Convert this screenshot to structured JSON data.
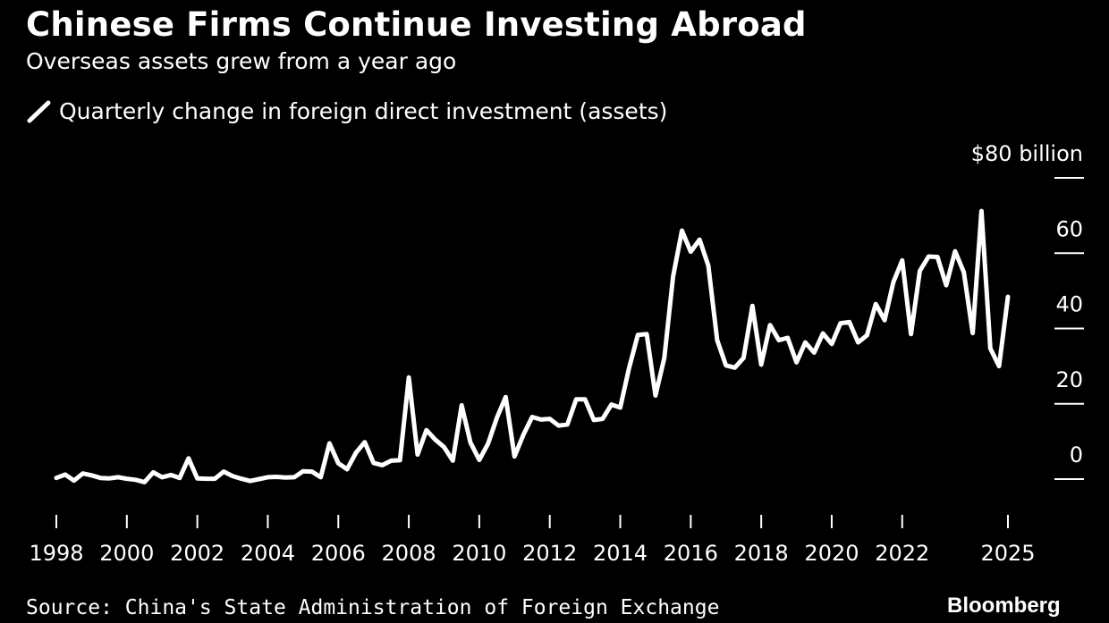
{
  "header": {
    "title": "Chinese Firms Continue Investing Abroad",
    "subtitle": "Overseas assets grew from a year ago"
  },
  "legend": {
    "label": "Quarterly change in foreign direct investment (assets)",
    "swatch_icon": "line-swatch-icon"
  },
  "footer": {
    "source": "Source: China's State Administration of Foreign Exchange",
    "brand": "Bloomberg"
  },
  "colors": {
    "background": "#000000",
    "line": "#ffffff",
    "text": "#ffffff"
  },
  "chart_data": {
    "type": "line",
    "title": "Chinese Firms Continue Investing Abroad",
    "subtitle": "Overseas assets grew from a year ago",
    "ylabel": "",
    "xlabel": "",
    "yunit_label": "$80 billion",
    "ylim": [
      -10,
      80
    ],
    "xlim": [
      1997.5,
      2025.75
    ],
    "grid": false,
    "legend_position": "top-left",
    "y_axis_side": "right",
    "yticks": [
      0,
      20,
      40,
      60,
      80
    ],
    "ytick_labels": [
      "0",
      "20",
      "40",
      "60",
      "$80 billion"
    ],
    "xticks": [
      1998,
      2000,
      2002,
      2004,
      2006,
      2008,
      2010,
      2012,
      2014,
      2016,
      2018,
      2020,
      2022,
      2025
    ],
    "xtick_labels": [
      "1998",
      "2000",
      "2002",
      "2004",
      "2006",
      "2008",
      "2010",
      "2012",
      "2014",
      "2016",
      "2018",
      "2020",
      "2022",
      "2025"
    ],
    "series": [
      {
        "name": "Quarterly change in foreign direct investment (assets)",
        "x": [
          1998.0,
          1998.25,
          1998.5,
          1998.75,
          1999.0,
          1999.25,
          1999.5,
          1999.75,
          2000.0,
          2000.25,
          2000.5,
          2000.75,
          2001.0,
          2001.25,
          2001.5,
          2001.75,
          2002.0,
          2002.25,
          2002.5,
          2002.75,
          2003.0,
          2003.25,
          2003.5,
          2003.75,
          2004.0,
          2004.25,
          2004.5,
          2004.75,
          2005.0,
          2005.25,
          2005.5,
          2005.75,
          2006.0,
          2006.25,
          2006.5,
          2006.75,
          2007.0,
          2007.25,
          2007.5,
          2007.75,
          2008.0,
          2008.25,
          2008.5,
          2008.75,
          2009.0,
          2009.25,
          2009.5,
          2009.75,
          2010.0,
          2010.25,
          2010.5,
          2010.75,
          2011.0,
          2011.25,
          2011.5,
          2011.75,
          2012.0,
          2012.25,
          2012.5,
          2012.75,
          2013.0,
          2013.25,
          2013.5,
          2013.75,
          2014.0,
          2014.25,
          2014.5,
          2014.75,
          2015.0,
          2015.25,
          2015.5,
          2015.75,
          2016.0,
          2016.25,
          2016.5,
          2016.75,
          2017.0,
          2017.25,
          2017.5,
          2017.75,
          2018.0,
          2018.25,
          2018.5,
          2018.75,
          2019.0,
          2019.25,
          2019.5,
          2019.75,
          2020.0,
          2020.25,
          2020.5,
          2020.75,
          2021.0,
          2021.25,
          2021.5,
          2021.75,
          2022.0,
          2022.25,
          2022.5,
          2022.75,
          2023.0,
          2023.25,
          2023.5,
          2023.75,
          2024.0,
          2024.25,
          2024.5,
          2024.75,
          2025.0
        ],
        "values": [
          0.3,
          1.2,
          -0.4,
          1.5,
          1.0,
          0.3,
          0.2,
          0.5,
          0.1,
          -0.2,
          -0.8,
          1.8,
          0.5,
          1.1,
          0.3,
          5.5,
          0.2,
          0.1,
          0.1,
          2.0,
          0.8,
          0.1,
          -0.5,
          0.0,
          0.5,
          0.6,
          0.4,
          0.5,
          2.1,
          2.0,
          0.5,
          9.5,
          4.2,
          2.6,
          7.0,
          9.8,
          4.3,
          3.7,
          4.9,
          5.0,
          27.0,
          6.5,
          13.0,
          10.5,
          8.5,
          4.9,
          19.6,
          9.7,
          5.1,
          9.4,
          16.3,
          21.8,
          6.0,
          11.7,
          16.5,
          15.8,
          16.0,
          14.2,
          14.5,
          21.2,
          21.2,
          15.7,
          16.0,
          19.8,
          19.0,
          29.5,
          38.3,
          38.5,
          22.2,
          32.2,
          53.8,
          66.0,
          60.4,
          63.6,
          56.7,
          36.9,
          30.2,
          29.6,
          32.2,
          46.0,
          30.4,
          40.9,
          36.9,
          37.5,
          31.0,
          36.3,
          33.6,
          38.7,
          35.9,
          41.4,
          41.7,
          36.3,
          38.2,
          46.5,
          42.2,
          52.3,
          58.1,
          38.5,
          55.3,
          59.1,
          59.0,
          51.5,
          60.5,
          54.9,
          38.8,
          71.2,
          34.7,
          30.0,
          48.4
        ]
      }
    ]
  }
}
